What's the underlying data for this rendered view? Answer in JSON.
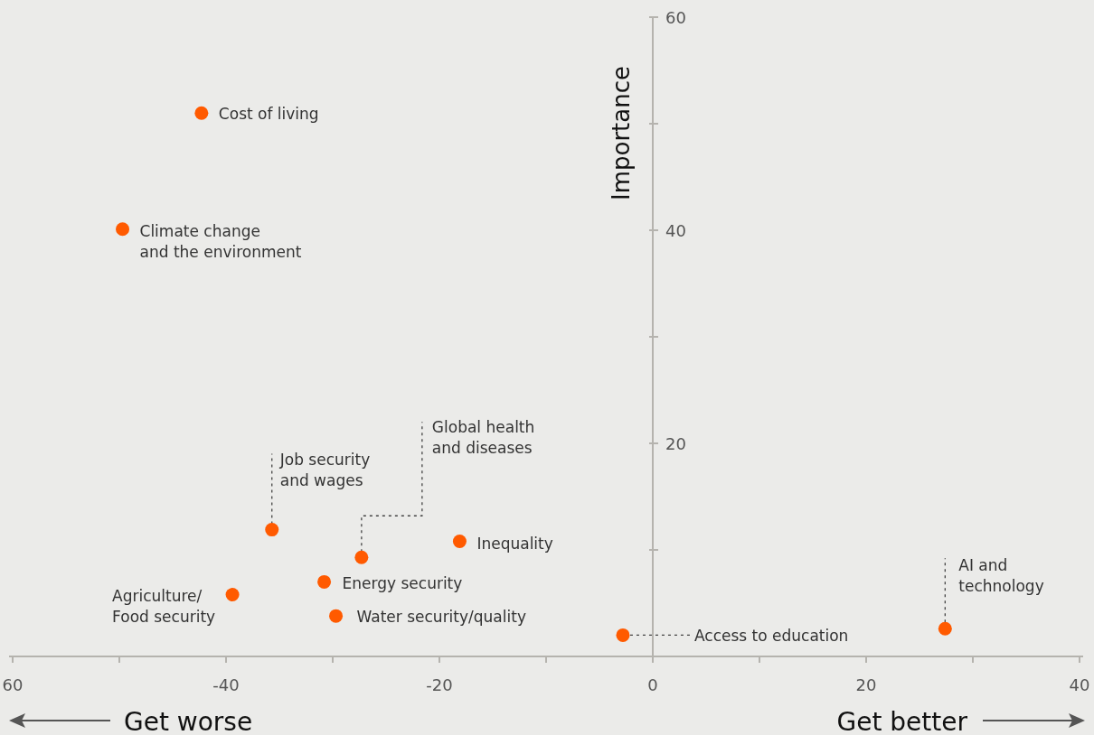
{
  "chart_data": {
    "type": "scatter",
    "ylabel": "Importance",
    "x": [
      -42.3,
      -49.7,
      -35.7,
      -27.3,
      -18.1,
      -30.8,
      -39.4,
      -29.7,
      -2.8,
      27.4
    ],
    "values": [
      51.0,
      40.1,
      11.9,
      9.3,
      10.8,
      7.0,
      5.8,
      3.8,
      2.0,
      2.6
    ],
    "color": "#ff5a00",
    "marker": "circle",
    "grid": false,
    "xlim": [
      -60,
      40
    ],
    "xticks": [
      {
        "value": -60,
        "label": "60"
      },
      {
        "value": -50,
        "label": null
      },
      {
        "value": -40,
        "label": "-40"
      },
      {
        "value": -30,
        "label": null
      },
      {
        "value": -20,
        "label": "-20"
      },
      {
        "value": -10,
        "label": null
      },
      0,
      {
        "value": 10,
        "label": null
      },
      20,
      {
        "value": 30,
        "label": null
      },
      40
    ],
    "ylim": [
      0,
      60
    ],
    "yticks": [
      {
        "value": 10,
        "label": null
      },
      20,
      {
        "value": 30,
        "label": null
      },
      40,
      {
        "value": 50,
        "label": null
      },
      60
    ],
    "annotations": [
      {
        "text": "Cost of living",
        "x": -42.3,
        "y": 51.0
      },
      {
        "text": "Climate change\nand the environment",
        "x": -49.7,
        "y": 40.1
      },
      {
        "text": "Job security\nand wages",
        "x": -35.7,
        "y": 11.9
      },
      {
        "text": "Global health\nand diseases",
        "x": -27.3,
        "y": 9.3
      },
      {
        "text": "Inequality",
        "x": -18.1,
        "y": 10.8
      },
      {
        "text": "Energy security",
        "x": -30.8,
        "y": 7.0
      },
      {
        "text": "Agriculture/\nFood security",
        "x": -39.4,
        "y": 5.8
      },
      {
        "text": "Water security/quality",
        "x": -29.7,
        "y": 3.8
      },
      {
        "text": "Access to education",
        "x": -2.8,
        "y": 2.0
      },
      {
        "text": "AI and\ntechnology",
        "x": 27.4,
        "y": 2.6
      },
      "Get worse",
      "Get better"
    ]
  }
}
